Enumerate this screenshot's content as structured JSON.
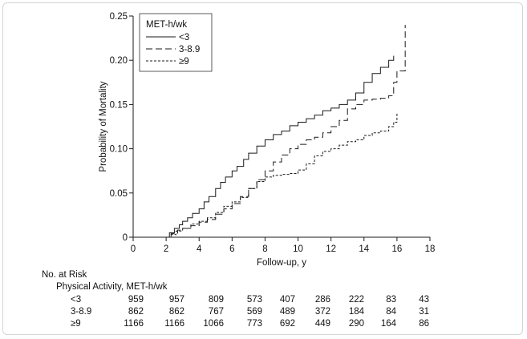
{
  "chart_data": {
    "type": "line",
    "step": true,
    "xlabel": "Follow-up, y",
    "ylabel": "Probability of Mortality",
    "xlim": [
      0,
      18
    ],
    "ylim": [
      0,
      0.25
    ],
    "x_ticks": [
      "0",
      "2",
      "4",
      "6",
      "8",
      "10",
      "12",
      "14",
      "16",
      "18"
    ],
    "y_ticks": [
      "0",
      "0.05",
      "0.10",
      "0.15",
      "0.20",
      "0.25"
    ],
    "grid": false,
    "legend": {
      "title": "MET-h/wk",
      "placement": "top-left"
    },
    "series": [
      {
        "name": "<3",
        "style": "solid",
        "points": [
          [
            0,
            0
          ],
          [
            2.0,
            0
          ],
          [
            2.2,
            0.005
          ],
          [
            2.5,
            0.01
          ],
          [
            2.8,
            0.014
          ],
          [
            3.0,
            0.018
          ],
          [
            3.3,
            0.022
          ],
          [
            3.6,
            0.027
          ],
          [
            4.0,
            0.032
          ],
          [
            4.3,
            0.04
          ],
          [
            4.6,
            0.046
          ],
          [
            5.0,
            0.055
          ],
          [
            5.3,
            0.062
          ],
          [
            5.6,
            0.068
          ],
          [
            6.0,
            0.075
          ],
          [
            6.3,
            0.08
          ],
          [
            6.7,
            0.088
          ],
          [
            7.0,
            0.095
          ],
          [
            7.5,
            0.103
          ],
          [
            8.0,
            0.11
          ],
          [
            8.5,
            0.116
          ],
          [
            9.0,
            0.12
          ],
          [
            9.5,
            0.126
          ],
          [
            10.0,
            0.13
          ],
          [
            10.5,
            0.134
          ],
          [
            11.0,
            0.138
          ],
          [
            11.5,
            0.143
          ],
          [
            12.0,
            0.146
          ],
          [
            12.5,
            0.15
          ],
          [
            13.0,
            0.155
          ],
          [
            13.5,
            0.163
          ],
          [
            14.0,
            0.175
          ],
          [
            14.5,
            0.185
          ],
          [
            15.0,
            0.192
          ],
          [
            15.5,
            0.2
          ],
          [
            15.8,
            0.205
          ],
          [
            15.8,
            0.205
          ]
        ]
      },
      {
        "name": "3-8.9",
        "style": "dashed",
        "points": [
          [
            0,
            0
          ],
          [
            2.0,
            0
          ],
          [
            2.3,
            0.004
          ],
          [
            2.7,
            0.008
          ],
          [
            3.0,
            0.01
          ],
          [
            3.5,
            0.013
          ],
          [
            4.0,
            0.017
          ],
          [
            4.5,
            0.02
          ],
          [
            5.0,
            0.026
          ],
          [
            5.5,
            0.032
          ],
          [
            6.0,
            0.038
          ],
          [
            6.5,
            0.046
          ],
          [
            7.0,
            0.055
          ],
          [
            7.5,
            0.065
          ],
          [
            8.0,
            0.075
          ],
          [
            8.5,
            0.085
          ],
          [
            9.0,
            0.093
          ],
          [
            9.5,
            0.1
          ],
          [
            10.0,
            0.105
          ],
          [
            10.5,
            0.11
          ],
          [
            11.0,
            0.113
          ],
          [
            11.5,
            0.118
          ],
          [
            12.0,
            0.125
          ],
          [
            12.5,
            0.132
          ],
          [
            13.0,
            0.145
          ],
          [
            13.5,
            0.15
          ],
          [
            14.0,
            0.155
          ],
          [
            14.5,
            0.156
          ],
          [
            15.0,
            0.157
          ],
          [
            15.5,
            0.16
          ],
          [
            15.8,
            0.175
          ],
          [
            16.0,
            0.188
          ],
          [
            16.3,
            0.188
          ],
          [
            16.5,
            0.24
          ],
          [
            16.5,
            0.24
          ]
        ]
      },
      {
        "name": "≥9",
        "style": "dotted",
        "points": [
          [
            0,
            0
          ],
          [
            2.0,
            0
          ],
          [
            2.3,
            0.003
          ],
          [
            2.6,
            0.007
          ],
          [
            3.0,
            0.01
          ],
          [
            3.5,
            0.015
          ],
          [
            4.0,
            0.018
          ],
          [
            4.5,
            0.022
          ],
          [
            5.0,
            0.028
          ],
          [
            5.5,
            0.035
          ],
          [
            6.0,
            0.04
          ],
          [
            6.5,
            0.045
          ],
          [
            7.0,
            0.055
          ],
          [
            7.5,
            0.063
          ],
          [
            8.0,
            0.068
          ],
          [
            8.5,
            0.07
          ],
          [
            9.0,
            0.071
          ],
          [
            9.5,
            0.072
          ],
          [
            10.0,
            0.076
          ],
          [
            10.5,
            0.083
          ],
          [
            11.0,
            0.092
          ],
          [
            11.5,
            0.097
          ],
          [
            12.0,
            0.1
          ],
          [
            12.5,
            0.104
          ],
          [
            13.0,
            0.108
          ],
          [
            13.5,
            0.11
          ],
          [
            14.0,
            0.115
          ],
          [
            14.5,
            0.118
          ],
          [
            15.0,
            0.12
          ],
          [
            15.5,
            0.125
          ],
          [
            15.8,
            0.13
          ],
          [
            16.0,
            0.14
          ],
          [
            16.0,
            0.14
          ]
        ]
      }
    ]
  },
  "risk_table": {
    "title": "No. at Risk",
    "subtitle": "Physical Activity, MET-h/wk",
    "rows": [
      {
        "label": "<3",
        "values": [
          "959",
          "957",
          "809",
          "573",
          "407",
          "286",
          "222",
          "83",
          "43"
        ]
      },
      {
        "label": "3-8.9",
        "values": [
          "862",
          "862",
          "767",
          "569",
          "489",
          "372",
          "184",
          "84",
          "31"
        ]
      },
      {
        "label": "≥9",
        "values": [
          "1166",
          "1166",
          "1066",
          "773",
          "692",
          "449",
          "290",
          "164",
          "86"
        ]
      }
    ]
  },
  "colors": {
    "ink": "#1a1a1a",
    "frame": "#d4d4d4"
  }
}
